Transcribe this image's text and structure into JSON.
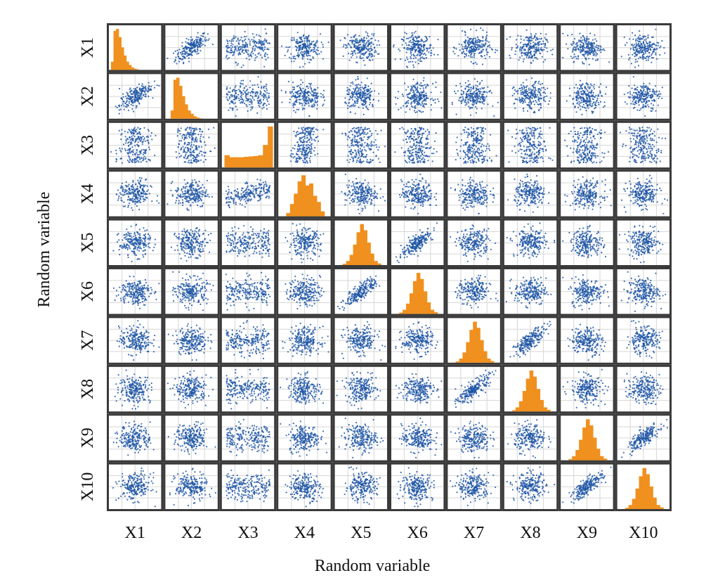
{
  "chart_data": {
    "type": "scatter",
    "subtype": "scatter-plot-matrix",
    "title": "",
    "xlabel": "Random variable",
    "ylabel": "Random variable",
    "variables": [
      "X1",
      "X2",
      "X3",
      "X4",
      "X5",
      "X6",
      "X7",
      "X8",
      "X9",
      "X10"
    ],
    "grid": true,
    "legend": "none",
    "diagonal": {
      "type": "histogram",
      "color": "#f0901e",
      "shapes": [
        "right-skewed",
        "right-skewed",
        "u-shaped",
        "symmetric",
        "normal",
        "normal",
        "normal",
        "normal",
        "normal",
        "normal"
      ]
    },
    "off_diagonal": {
      "type": "scatter",
      "color": "#1f56a6",
      "correlated_pairs": [
        {
          "a": "X1",
          "b": "X2",
          "strength": 0.7
        },
        {
          "a": "X3",
          "b": "X4",
          "strength": 0.5
        },
        {
          "a": "X5",
          "b": "X6",
          "strength": 0.8
        },
        {
          "a": "X7",
          "b": "X8",
          "strength": 0.8
        },
        {
          "a": "X9",
          "b": "X10",
          "strength": 0.8
        }
      ]
    }
  }
}
